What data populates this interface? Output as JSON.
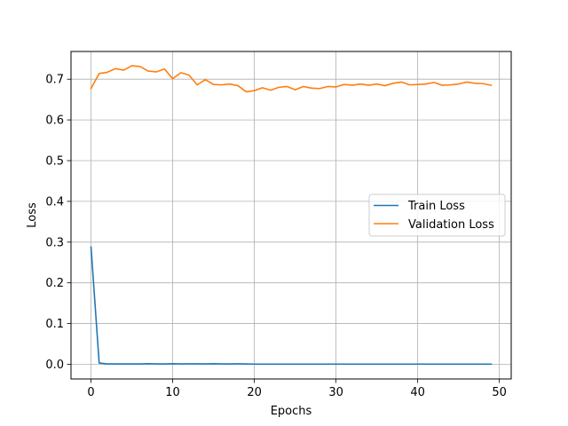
{
  "chart_data": {
    "type": "line",
    "title": "",
    "xlabel": "Epochs",
    "ylabel": "Loss",
    "xlim": [
      -2.45,
      51.45
    ],
    "ylim": [
      -0.036,
      0.768
    ],
    "xticks": [
      0,
      10,
      20,
      30,
      40,
      50
    ],
    "yticks": [
      0.0,
      0.1,
      0.2,
      0.3,
      0.4,
      0.5,
      0.6,
      0.7
    ],
    "xtick_labels": [
      "0",
      "10",
      "20",
      "30",
      "40",
      "50"
    ],
    "ytick_labels": [
      "0.0",
      "0.1",
      "0.2",
      "0.3",
      "0.4",
      "0.5",
      "0.6",
      "0.7"
    ],
    "grid": true,
    "legend_position": "center-right",
    "x": [
      0,
      1,
      2,
      3,
      4,
      5,
      6,
      7,
      8,
      9,
      10,
      11,
      12,
      13,
      14,
      15,
      16,
      17,
      18,
      19,
      20,
      21,
      22,
      23,
      24,
      25,
      26,
      27,
      28,
      29,
      30,
      31,
      32,
      33,
      34,
      35,
      36,
      37,
      38,
      39,
      40,
      41,
      42,
      43,
      44,
      45,
      46,
      47,
      48,
      49
    ],
    "series": [
      {
        "name": "Train Loss",
        "color": "#1f77b4",
        "values": [
          0.288,
          0.003,
          0.001,
          0.001,
          0.001,
          0.001,
          0.001,
          0.0015,
          0.001,
          0.001,
          0.0015,
          0.001,
          0.0012,
          0.0012,
          0.001,
          0.0015,
          0.001,
          0.001,
          0.0012,
          0.001,
          0.0005,
          0.0005,
          0.0005,
          0.0005,
          0.0005,
          0.0005,
          0.0005,
          0.0005,
          0.0005,
          0.0005,
          0.0005,
          0.0005,
          0.0005,
          0.0005,
          0.0005,
          0.0005,
          0.0005,
          0.0005,
          0.0005,
          0.0005,
          0.0005,
          0.0005,
          0.0005,
          0.0005,
          0.0005,
          0.0005,
          0.0005,
          0.0005,
          0.0005,
          0.0005
        ]
      },
      {
        "name": "Validation Loss",
        "color": "#ff7f0e",
        "values": [
          0.677,
          0.714,
          0.717,
          0.726,
          0.722,
          0.733,
          0.731,
          0.72,
          0.718,
          0.725,
          0.701,
          0.716,
          0.71,
          0.686,
          0.699,
          0.687,
          0.686,
          0.688,
          0.684,
          0.669,
          0.672,
          0.679,
          0.673,
          0.68,
          0.682,
          0.674,
          0.682,
          0.678,
          0.677,
          0.682,
          0.681,
          0.687,
          0.685,
          0.688,
          0.685,
          0.688,
          0.684,
          0.69,
          0.693,
          0.686,
          0.687,
          0.688,
          0.692,
          0.685,
          0.686,
          0.688,
          0.693,
          0.69,
          0.689,
          0.685
        ]
      }
    ]
  }
}
